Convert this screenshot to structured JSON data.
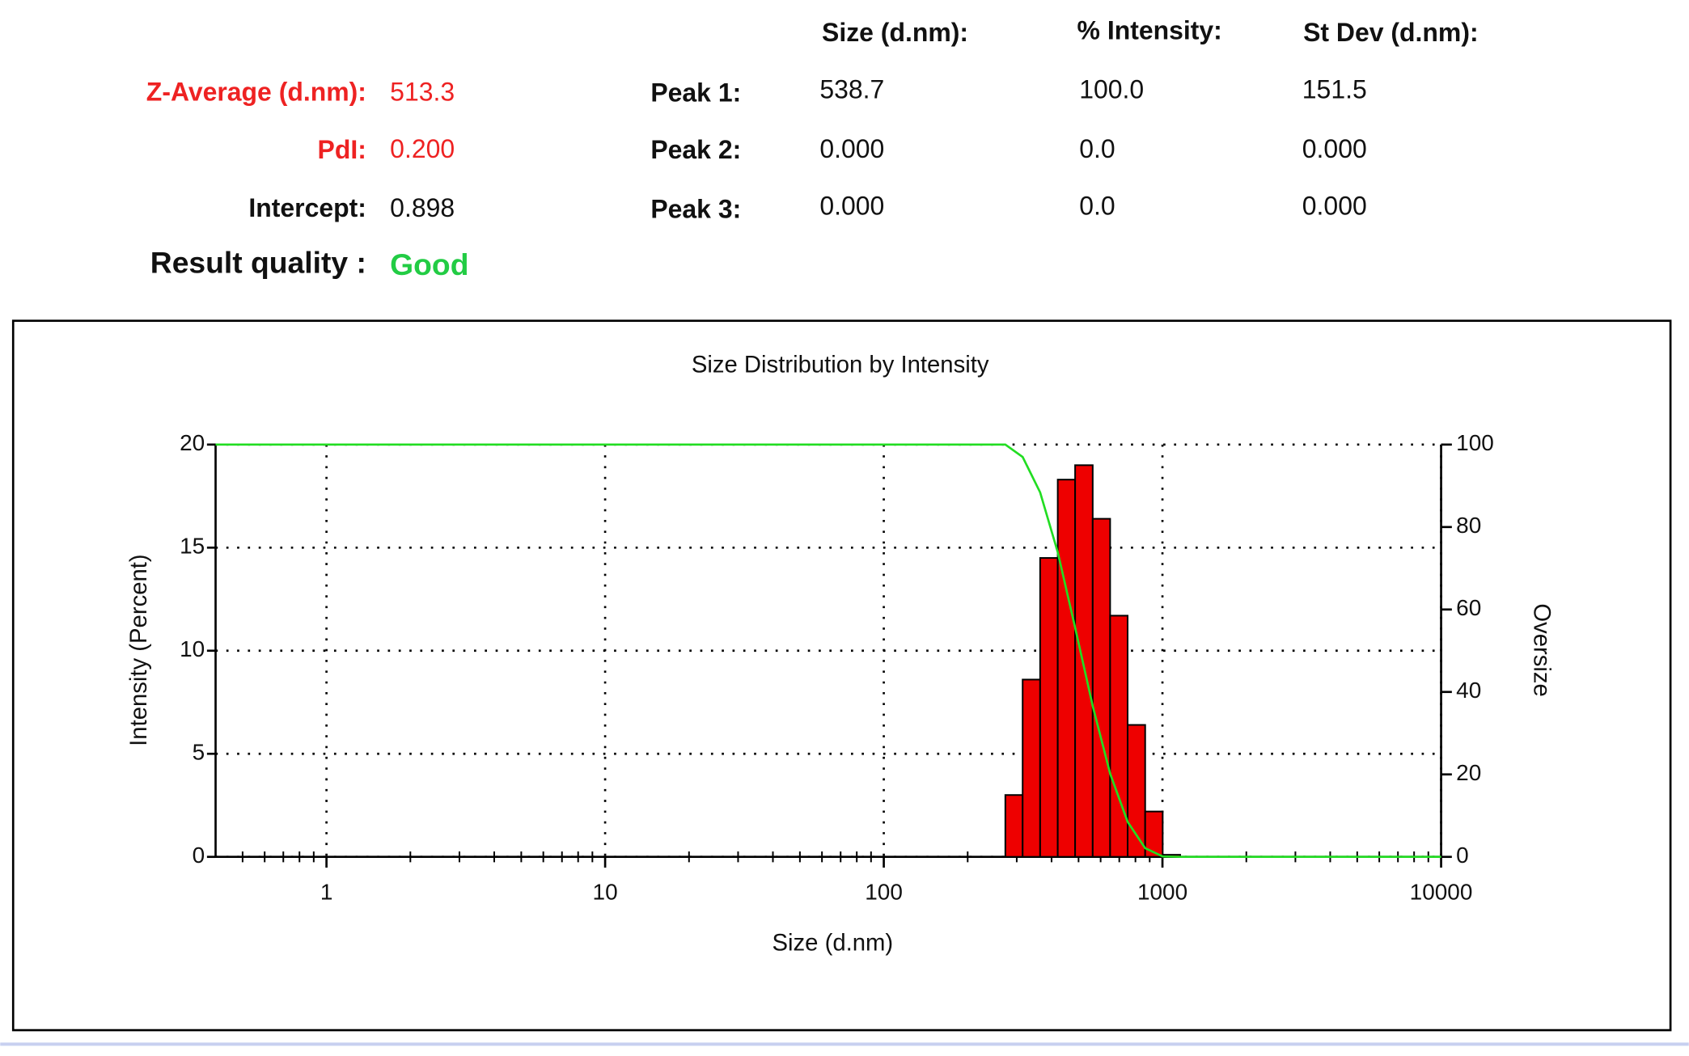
{
  "summary": {
    "left": [
      {
        "label": "Z-Average (d.nm):",
        "value": "513.3"
      },
      {
        "label": "PdI:",
        "value": "0.200"
      },
      {
        "label": "Intercept:",
        "value": "0.898"
      },
      {
        "label": "Result quality :",
        "value": "Good"
      }
    ],
    "peaks": {
      "headers": [
        "Size (d.nm):",
        "% Intensity:",
        "St Dev (d.nm):"
      ],
      "rows": [
        {
          "label": "Peak 1:",
          "values": [
            "538.7",
            "100.0",
            "151.5"
          ]
        },
        {
          "label": "Peak 2:",
          "values": [
            "0.000",
            "0.0",
            "0.000"
          ]
        },
        {
          "label": "Peak 3:",
          "values": [
            "0.000",
            "0.0",
            "0.000"
          ]
        }
      ]
    }
  },
  "chart_data": {
    "type": "histogram",
    "title": "Size Distribution by Intensity",
    "x_label": "Size (d.nm)",
    "y_label": "Intensity (Percent)",
    "y2_label": "Oversize",
    "x_log": true,
    "x_minor_ticks": true,
    "grid": true,
    "bins": [
      273,
      315,
      364,
      421,
      486,
      562,
      649,
      750,
      867,
      1002,
      1158
    ],
    "values": [
      3.0,
      8.6,
      14.5,
      18.3,
      19.0,
      16.4,
      11.7,
      6.4,
      2.2,
      0.1
    ],
    "color": "#ee0000",
    "overlay": {
      "type": "line",
      "axis": "y2",
      "color": "#22dd22",
      "x": [
        0.4,
        269,
        273,
        315,
        364,
        421,
        486,
        562,
        649,
        750,
        867,
        1002,
        1158,
        10000
      ],
      "values": [
        100,
        100,
        100,
        97,
        88.4,
        73.9,
        55.6,
        36.6,
        20.2,
        8.5,
        2.1,
        0.1,
        0,
        0
      ]
    },
    "xlim": [
      0.4,
      10000
    ],
    "xticks": [
      1,
      10,
      100,
      1000,
      10000
    ],
    "ylim": [
      0,
      20
    ],
    "yticks": [
      0,
      5,
      10,
      15,
      20
    ],
    "y2lim": [
      0,
      100
    ],
    "y2ticks": [
      0,
      20,
      40,
      60,
      80,
      100
    ]
  }
}
